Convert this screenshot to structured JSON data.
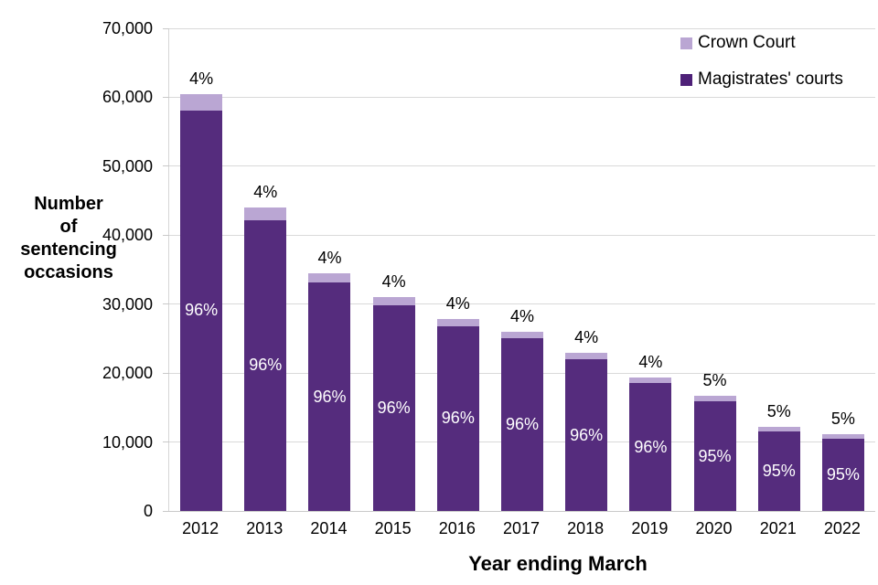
{
  "axes": {
    "x_title": "Year ending March",
    "y_title": "Number\nof\nsentencing\noccasions",
    "y_ticks": [
      {
        "value": 0,
        "label": "0"
      },
      {
        "value": 10000,
        "label": "10,000"
      },
      {
        "value": 20000,
        "label": "20,000"
      },
      {
        "value": 30000,
        "label": "30,000"
      },
      {
        "value": 40000,
        "label": "40,000"
      },
      {
        "value": 50000,
        "label": "50,000"
      },
      {
        "value": 60000,
        "label": "60,000"
      },
      {
        "value": 70000,
        "label": "70,000"
      }
    ]
  },
  "legend": {
    "items": [
      {
        "label": "Crown Court",
        "color": "#BAA6D3"
      },
      {
        "label": "Magistrates' courts",
        "color": "#4E2178"
      }
    ]
  },
  "chart_data": {
    "type": "bar",
    "stacked": true,
    "title": "",
    "xlabel": "Year ending March",
    "ylabel": "Number of sentencing occasions",
    "ylim": [
      0,
      70000
    ],
    "grid": "horizontal",
    "legend_position": "top-right",
    "categories": [
      "2012",
      "2013",
      "2014",
      "2015",
      "2016",
      "2017",
      "2018",
      "2019",
      "2020",
      "2021",
      "2022"
    ],
    "series": [
      {
        "name": "Magistrates' courts",
        "color": "#552C7D",
        "values": [
          58100,
          42200,
          33100,
          29800,
          26800,
          25000,
          22000,
          18500,
          15900,
          11600,
          10500
        ],
        "labels": [
          "96%",
          "96%",
          "96%",
          "96%",
          "96%",
          "96%",
          "96%",
          "96%",
          "95%",
          "95%",
          "95%"
        ]
      },
      {
        "name": "Crown Court",
        "color": "#BAA6D3",
        "values": [
          2400,
          1800,
          1400,
          1200,
          1100,
          1000,
          900,
          800,
          800,
          600,
          600
        ],
        "labels": [
          "4%",
          "4%",
          "4%",
          "4%",
          "4%",
          "4%",
          "4%",
          "4%",
          "5%",
          "5%",
          "5%"
        ]
      }
    ],
    "totals": [
      60500,
      44000,
      34500,
      31000,
      27900,
      26000,
      22900,
      19300,
      16700,
      12200,
      11100
    ]
  }
}
